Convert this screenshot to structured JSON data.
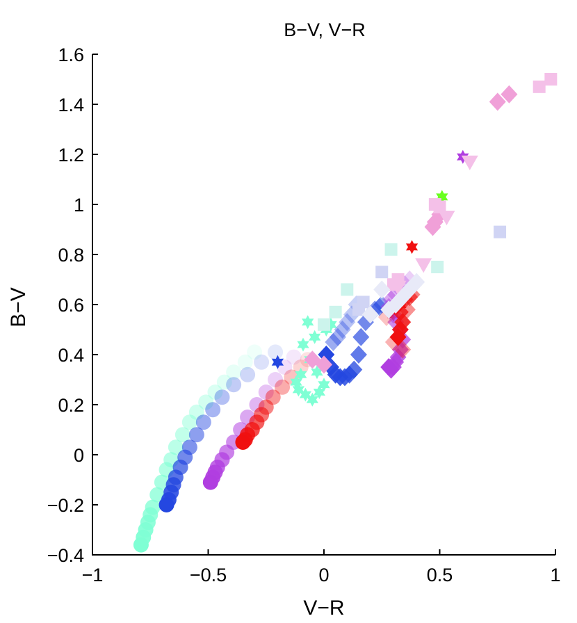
{
  "chart_data": {
    "type": "scatter",
    "title": "B−V, V−R",
    "xlabel": "V−R",
    "ylabel": "B−V",
    "xlim": [
      -1,
      1
    ],
    "ylim": [
      -0.4,
      1.6
    ],
    "xticks": [
      -1,
      -0.5,
      0,
      0.5,
      1
    ],
    "xtick_labels": [
      "−1",
      "−0.5",
      "0",
      "0.5",
      "1"
    ],
    "yticks": [
      -0.4,
      -0.2,
      0,
      0.2,
      0.4,
      0.6,
      0.8,
      1,
      1.2,
      1.4,
      1.6
    ],
    "ytick_labels": [
      "−0.4",
      "−0.2",
      "0",
      "0.2",
      "0.4",
      "0.6",
      "0.8",
      "1",
      "1.2",
      "1.4",
      "1.6"
    ],
    "grid": false,
    "legend": "none",
    "series": [
      {
        "marker": "circle",
        "color": "#7fffd4",
        "fade": "late",
        "x": [
          -0.79,
          -0.78,
          -0.77,
          -0.76,
          -0.75,
          -0.74,
          -0.72,
          -0.7,
          -0.68,
          -0.66,
          -0.64,
          -0.61,
          -0.58,
          -0.55,
          -0.51,
          -0.47,
          -0.43,
          -0.39,
          -0.34,
          -0.3
        ],
        "y": [
          -0.36,
          -0.33,
          -0.3,
          -0.27,
          -0.24,
          -0.21,
          -0.16,
          -0.11,
          -0.06,
          -0.02,
          0.03,
          0.08,
          0.13,
          0.17,
          0.21,
          0.25,
          0.29,
          0.33,
          0.37,
          0.41
        ]
      },
      {
        "marker": "circle",
        "color": "#2447e0",
        "fade": "late",
        "x": [
          -0.68,
          -0.67,
          -0.66,
          -0.65,
          -0.64,
          -0.62,
          -0.6,
          -0.58,
          -0.55,
          -0.52,
          -0.48,
          -0.44,
          -0.39,
          -0.33,
          -0.27,
          -0.21
        ],
        "y": [
          -0.2,
          -0.18,
          -0.15,
          -0.12,
          -0.09,
          -0.05,
          -0.01,
          0.03,
          0.08,
          0.13,
          0.18,
          0.23,
          0.28,
          0.32,
          0.37,
          0.41
        ]
      },
      {
        "marker": "circle",
        "color": "#b03ee0",
        "fade": "late",
        "x": [
          -0.49,
          -0.48,
          -0.47,
          -0.46,
          -0.44,
          -0.42,
          -0.39,
          -0.36,
          -0.33,
          -0.29,
          -0.25,
          -0.21,
          -0.17,
          -0.13
        ],
        "y": [
          -0.11,
          -0.09,
          -0.07,
          -0.05,
          -0.02,
          0.01,
          0.05,
          0.1,
          0.15,
          0.2,
          0.25,
          0.3,
          0.35,
          0.39
        ]
      },
      {
        "marker": "circle",
        "color": "#f01010",
        "fade": "late",
        "x": [
          -0.35,
          -0.34,
          -0.33,
          -0.31,
          -0.29,
          -0.27,
          -0.25,
          -0.22,
          -0.18,
          -0.14,
          -0.1,
          -0.07
        ],
        "y": [
          0.05,
          0.06,
          0.08,
          0.1,
          0.13,
          0.16,
          0.19,
          0.23,
          0.27,
          0.31,
          0.35,
          0.38
        ]
      },
      {
        "marker": "star",
        "color": "#7fffd4",
        "x": [
          -0.07,
          -0.11,
          -0.12,
          -0.1,
          -0.08,
          -0.05,
          -0.02,
          0.0,
          -0.03,
          -0.06,
          -0.09,
          -0.04,
          0.01,
          0.03
        ],
        "y": [
          0.53,
          0.26,
          0.29,
          0.32,
          0.24,
          0.22,
          0.25,
          0.28,
          0.33,
          0.38,
          0.44,
          0.47,
          0.5,
          0.52
        ]
      },
      {
        "marker": "star",
        "color": "#2447e0",
        "x": [
          -0.2
        ],
        "y": [
          0.37
        ]
      },
      {
        "marker": "star",
        "color": "#f01010",
        "x": [
          0.38,
          0.33,
          0.3
        ],
        "y": [
          0.83,
          0.6,
          0.56
        ]
      },
      {
        "marker": "star",
        "color": "#6aff20",
        "x": [
          0.51
        ],
        "y": [
          1.03
        ]
      },
      {
        "marker": "star",
        "color": "#b03ee0",
        "x": [
          0.6
        ],
        "y": [
          1.19
        ]
      },
      {
        "marker": "diamond",
        "color": "#2447e0",
        "fade": "early",
        "x": [
          0.01,
          0.03,
          0.05,
          0.07,
          0.09,
          0.11,
          0.13,
          0.15,
          0.16,
          0.18,
          0.2,
          0.22,
          0.24,
          0.25,
          0.04,
          0.06,
          0.08,
          0.1,
          0.12,
          0.14
        ],
        "y": [
          0.4,
          0.35,
          0.32,
          0.31,
          0.31,
          0.32,
          0.34,
          0.4,
          0.47,
          0.53,
          0.56,
          0.58,
          0.59,
          0.6,
          0.45,
          0.47,
          0.5,
          0.53,
          0.56,
          0.6
        ]
      },
      {
        "marker": "diamond",
        "color": "#b03ee0",
        "fade": "early",
        "x": [
          0.28,
          0.29,
          0.3,
          0.31,
          0.32,
          0.33,
          0.34,
          0.33,
          0.31,
          0.3,
          0.28,
          0.29,
          0.31,
          0.33,
          0.35,
          0.37
        ],
        "y": [
          0.35,
          0.34,
          0.35,
          0.37,
          0.39,
          0.42,
          0.46,
          0.5,
          0.53,
          0.56,
          0.59,
          0.62,
          0.64,
          0.66,
          0.68,
          0.7
        ]
      },
      {
        "marker": "diamond",
        "color": "#f01010",
        "fade": "early",
        "x": [
          0.32,
          0.33,
          0.34,
          0.33,
          0.32,
          0.35,
          0.37,
          0.38,
          0.36,
          0.34,
          0.3,
          0.27
        ],
        "y": [
          0.47,
          0.5,
          0.53,
          0.57,
          0.6,
          0.62,
          0.63,
          0.64,
          0.58,
          0.42,
          0.45,
          0.55
        ]
      },
      {
        "marker": "diamond",
        "color": "#f0a0d8",
        "fade": "none",
        "x": [
          0.75,
          0.8,
          0.48,
          0.5,
          0.47,
          -0.05,
          0.0
        ],
        "y": [
          1.41,
          1.44,
          0.93,
          0.96,
          0.91,
          0.38,
          0.36
        ]
      },
      {
        "marker": "square",
        "color": "#f4c0e8",
        "fade": "none",
        "x": [
          0.93,
          0.98,
          0.48,
          0.3,
          0.32,
          0.5
        ],
        "y": [
          1.47,
          1.5,
          1.0,
          0.68,
          0.7,
          0.99
        ]
      },
      {
        "marker": "square",
        "color": "#d0d4f4",
        "fade": "none",
        "x": [
          0.76,
          0.25,
          0.15,
          0.17
        ],
        "y": [
          0.89,
          0.73,
          0.58,
          0.61
        ]
      },
      {
        "marker": "square",
        "color": "#ccf4ec",
        "fade": "none",
        "x": [
          0.29,
          0.49,
          0.1,
          0.0,
          0.05
        ],
        "y": [
          0.82,
          0.75,
          0.66,
          0.52,
          0.57
        ]
      },
      {
        "marker": "triangle-down",
        "color": "#f4c0e8",
        "fade": "none",
        "x": [
          0.63,
          0.53,
          0.43,
          0.32
        ],
        "y": [
          1.17,
          0.95,
          0.76,
          0.67
        ]
      },
      {
        "marker": "diamond",
        "color": "#e8eaf8",
        "fade": "none",
        "x": [
          0.4,
          0.37,
          0.34,
          0.31,
          0.28,
          0.2,
          0.25
        ],
        "y": [
          0.69,
          0.66,
          0.63,
          0.6,
          0.58,
          0.56,
          0.66
        ]
      }
    ]
  }
}
